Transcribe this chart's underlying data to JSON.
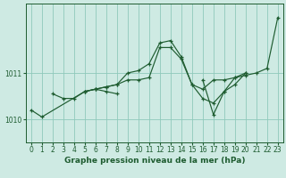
{
  "title": "Graphe pression niveau de la mer (hPa)",
  "bg_color": "#ceeae3",
  "grid_color": "#8fc9bb",
  "line_color": "#1e5c30",
  "xlim": [
    -0.5,
    23.5
  ],
  "ylim": [
    1009.5,
    1012.5
  ],
  "yticks": [
    1010,
    1011
  ],
  "xticks": [
    0,
    1,
    2,
    3,
    4,
    5,
    6,
    7,
    8,
    9,
    10,
    11,
    12,
    13,
    14,
    15,
    16,
    17,
    18,
    19,
    20,
    21,
    22,
    23
  ],
  "series": [
    {
      "x": [
        0,
        1,
        5,
        6,
        7,
        8,
        9,
        10,
        11,
        12,
        13,
        14,
        15,
        16,
        17,
        18,
        19,
        20,
        21,
        22,
        23
      ],
      "y": [
        1010.2,
        1010.05,
        1010.6,
        1010.65,
        1010.7,
        1010.75,
        1010.85,
        1010.85,
        1010.9,
        1011.55,
        1011.55,
        1011.3,
        1010.75,
        1010.65,
        1010.85,
        1010.85,
        1010.9,
        1010.95,
        1011.0,
        1011.1,
        1012.2
      ]
    },
    {
      "x": [
        2,
        3,
        4,
        5,
        6,
        7,
        8
      ],
      "y": [
        1010.55,
        1010.45,
        1010.45,
        1010.6,
        1010.65,
        1010.6,
        1010.55
      ]
    },
    {
      "x": [
        5,
        6,
        7,
        8,
        9,
        10,
        11,
        12,
        13,
        14,
        15,
        16,
        17,
        18,
        19,
        20
      ],
      "y": [
        1010.6,
        1010.65,
        1010.7,
        1010.75,
        1011.0,
        1011.05,
        1011.2,
        1011.65,
        1011.7,
        1011.35,
        1010.75,
        1010.45,
        1010.35,
        1010.6,
        1010.75,
        1011.0
      ]
    },
    {
      "x": [
        16,
        17,
        18,
        19,
        20
      ],
      "y": [
        1010.85,
        1010.1,
        1010.6,
        1010.9,
        1011.0
      ]
    }
  ],
  "title_fontsize": 6.5,
  "tick_fontsize": 5.5
}
